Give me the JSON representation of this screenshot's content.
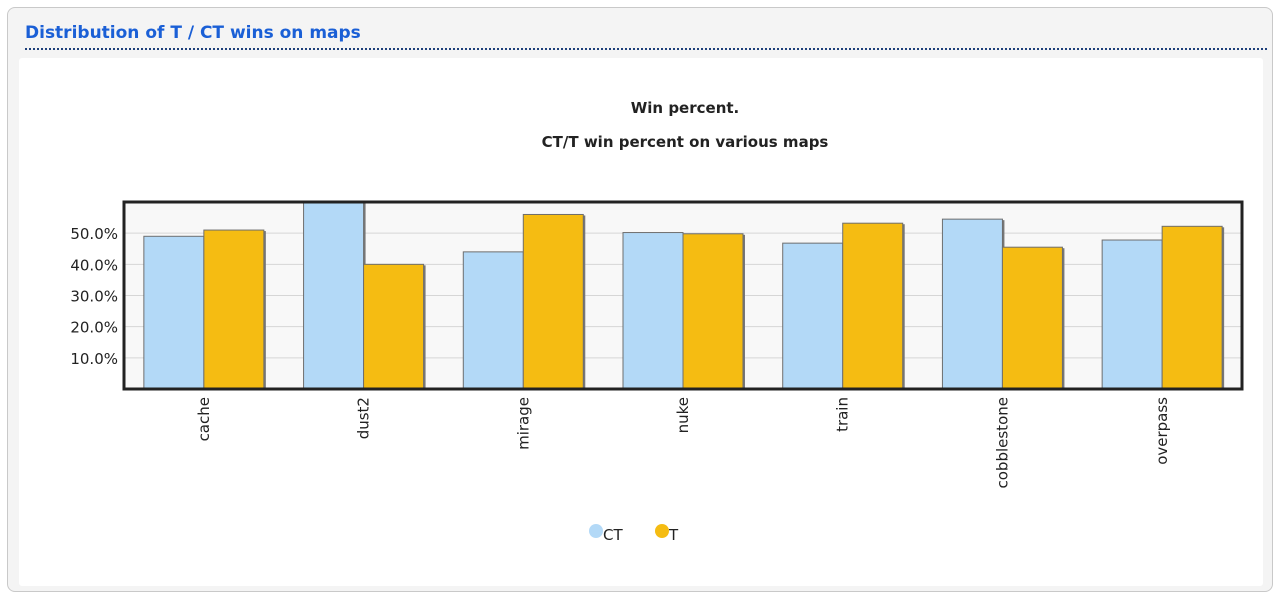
{
  "panel": {
    "title": "Distribution of T / CT wins on maps"
  },
  "chart_data": {
    "type": "bar",
    "title": "Win percent.",
    "subtitle": "CT/T win percent on various maps",
    "categories": [
      "cache",
      "dust2",
      "mirage",
      "nuke",
      "train",
      "cobblestone",
      "overpass"
    ],
    "series": [
      {
        "name": "CT",
        "values": [
          49.0,
          60.0,
          44.0,
          50.2,
          46.8,
          54.5,
          47.8
        ],
        "color": "#b3d9f7"
      },
      {
        "name": "T",
        "values": [
          51.0,
          40.0,
          56.0,
          49.8,
          53.2,
          45.5,
          52.2
        ],
        "color": "#f5bc12"
      }
    ],
    "yticks": [
      "10.0%",
      "20.0%",
      "30.0%",
      "40.0%",
      "50.0%"
    ],
    "ytick_values": [
      10,
      20,
      30,
      40,
      50
    ],
    "ylim": [
      0,
      60
    ],
    "xlabel": "",
    "ylabel": "",
    "grid": true,
    "legend_position": "bottom-center"
  }
}
